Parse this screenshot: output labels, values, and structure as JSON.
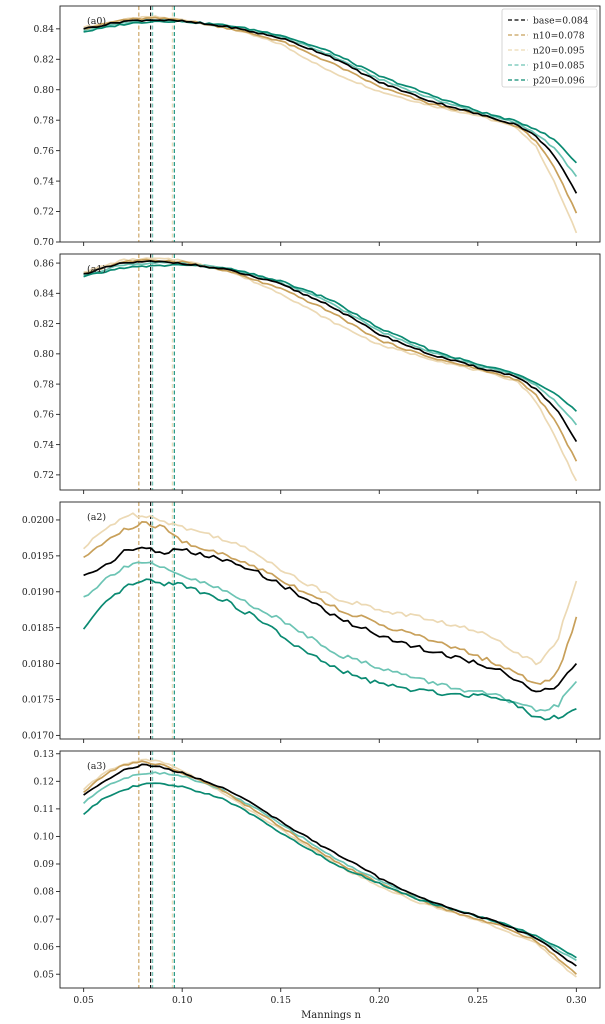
{
  "figure": {
    "xlabel": "Mannings n",
    "xticks": [
      0.05,
      0.1,
      0.15,
      0.2,
      0.25,
      0.3
    ]
  },
  "colors": {
    "base": "#000000",
    "n10": "#c8a05a",
    "n20": "#ecd9b4",
    "p10": "#6cc4b4",
    "p20": "#0a8a72"
  },
  "legend": {
    "position": "top-right",
    "entries": [
      {
        "key": "base",
        "label": "base=0.084",
        "x": 0.084
      },
      {
        "key": "n10",
        "label": "n10=0.078",
        "x": 0.078
      },
      {
        "key": "n20",
        "label": "n20=0.095",
        "x": 0.095
      },
      {
        "key": "p10",
        "label": "p10=0.085",
        "x": 0.085
      },
      {
        "key": "p20",
        "label": "p20=0.096",
        "x": 0.096
      }
    ]
  },
  "chart_data": [
    {
      "type": "line",
      "panel_label": "(a0)",
      "ylabel": "",
      "xlim": [
        0.038,
        0.312
      ],
      "ylim": [
        0.7,
        0.855
      ],
      "yticks": [
        0.7,
        0.72,
        0.74,
        0.76,
        0.78,
        0.8,
        0.82,
        0.84
      ],
      "x": [
        0.05,
        0.07,
        0.085,
        0.1,
        0.125,
        0.15,
        0.175,
        0.2,
        0.225,
        0.25,
        0.27,
        0.28,
        0.29,
        0.3
      ],
      "series": [
        {
          "key": "base",
          "values": [
            0.84,
            0.845,
            0.846,
            0.845,
            0.841,
            0.834,
            0.822,
            0.805,
            0.793,
            0.784,
            0.777,
            0.769,
            0.755,
            0.732
          ]
        },
        {
          "key": "n10",
          "values": [
            0.84,
            0.846,
            0.847,
            0.846,
            0.84,
            0.832,
            0.818,
            0.802,
            0.791,
            0.784,
            0.776,
            0.766,
            0.746,
            0.719
          ]
        },
        {
          "key": "n20",
          "values": [
            0.841,
            0.846,
            0.848,
            0.846,
            0.84,
            0.83,
            0.812,
            0.799,
            0.79,
            0.783,
            0.775,
            0.762,
            0.736,
            0.706
          ]
        },
        {
          "key": "p10",
          "values": [
            0.839,
            0.844,
            0.846,
            0.845,
            0.841,
            0.835,
            0.823,
            0.807,
            0.795,
            0.785,
            0.778,
            0.771,
            0.76,
            0.743
          ]
        },
        {
          "key": "p20",
          "values": [
            0.838,
            0.843,
            0.845,
            0.845,
            0.842,
            0.836,
            0.825,
            0.809,
            0.797,
            0.786,
            0.779,
            0.774,
            0.766,
            0.752
          ]
        }
      ]
    },
    {
      "type": "line",
      "panel_label": "(a1)",
      "ylabel": "",
      "xlim": [
        0.038,
        0.312
      ],
      "ylim": [
        0.71,
        0.866
      ],
      "yticks": [
        0.72,
        0.74,
        0.76,
        0.78,
        0.8,
        0.82,
        0.84,
        0.86
      ],
      "x": [
        0.05,
        0.07,
        0.085,
        0.1,
        0.125,
        0.15,
        0.175,
        0.2,
        0.225,
        0.25,
        0.27,
        0.28,
        0.29,
        0.3
      ],
      "series": [
        {
          "key": "base",
          "values": [
            0.853,
            0.86,
            0.861,
            0.86,
            0.855,
            0.846,
            0.832,
            0.813,
            0.8,
            0.791,
            0.785,
            0.776,
            0.763,
            0.742
          ]
        },
        {
          "key": "n10",
          "values": [
            0.853,
            0.861,
            0.862,
            0.861,
            0.854,
            0.843,
            0.828,
            0.809,
            0.798,
            0.79,
            0.783,
            0.772,
            0.754,
            0.729
          ]
        },
        {
          "key": "n20",
          "values": [
            0.854,
            0.862,
            0.863,
            0.862,
            0.854,
            0.84,
            0.822,
            0.806,
            0.797,
            0.789,
            0.782,
            0.768,
            0.743,
            0.716
          ]
        },
        {
          "key": "p10",
          "values": [
            0.852,
            0.859,
            0.86,
            0.86,
            0.856,
            0.847,
            0.834,
            0.815,
            0.802,
            0.792,
            0.786,
            0.779,
            0.768,
            0.753
          ]
        },
        {
          "key": "p20",
          "values": [
            0.851,
            0.857,
            0.858,
            0.859,
            0.856,
            0.848,
            0.836,
            0.817,
            0.803,
            0.793,
            0.787,
            0.781,
            0.773,
            0.762
          ]
        }
      ]
    },
    {
      "type": "line",
      "panel_label": "(a2)",
      "ylabel": "",
      "xlim": [
        0.038,
        0.312
      ],
      "ylim": [
        0.01695,
        0.02025
      ],
      "yticks": [
        0.017,
        0.0175,
        0.018,
        0.0185,
        0.019,
        0.0195,
        0.02
      ],
      "x": [
        0.05,
        0.06,
        0.07,
        0.08,
        0.09,
        0.1,
        0.12,
        0.14,
        0.16,
        0.18,
        0.2,
        0.22,
        0.24,
        0.26,
        0.27,
        0.28,
        0.29,
        0.3
      ],
      "series": [
        {
          "key": "base",
          "values": [
            0.01923,
            0.01935,
            0.01955,
            0.01962,
            0.01955,
            0.01958,
            0.01945,
            0.01925,
            0.01895,
            0.01862,
            0.0184,
            0.01822,
            0.01808,
            0.01792,
            0.01778,
            0.0176,
            0.01765,
            0.018
          ]
        },
        {
          "key": "n10",
          "values": [
            0.01948,
            0.01968,
            0.01985,
            0.01995,
            0.0199,
            0.0197,
            0.01952,
            0.01932,
            0.01903,
            0.01875,
            0.01855,
            0.01838,
            0.0182,
            0.018,
            0.01785,
            0.01772,
            0.01782,
            0.01865
          ]
        },
        {
          "key": "n20",
          "values": [
            0.0196,
            0.01985,
            0.02005,
            0.02008,
            0.02,
            0.0199,
            0.01975,
            0.0195,
            0.01915,
            0.0189,
            0.01875,
            0.01865,
            0.01852,
            0.01835,
            0.01815,
            0.018,
            0.0183,
            0.01915
          ]
        },
        {
          "key": "p10",
          "values": [
            0.01893,
            0.01915,
            0.01935,
            0.01942,
            0.01932,
            0.01922,
            0.01903,
            0.01875,
            0.01845,
            0.01812,
            0.01795,
            0.01778,
            0.01765,
            0.01755,
            0.01742,
            0.01735,
            0.0174,
            0.01775
          ]
        },
        {
          "key": "p20",
          "values": [
            0.01848,
            0.0188,
            0.01905,
            0.01915,
            0.01912,
            0.0191,
            0.0189,
            0.0186,
            0.0182,
            0.0179,
            0.01772,
            0.01762,
            0.01757,
            0.01755,
            0.01742,
            0.01725,
            0.01725,
            0.01737
          ]
        }
      ]
    },
    {
      "type": "line",
      "panel_label": "(a3)",
      "ylabel": "",
      "xlim": [
        0.038,
        0.312
      ],
      "ylim": [
        0.045,
        0.131
      ],
      "yticks": [
        0.05,
        0.06,
        0.07,
        0.08,
        0.09,
        0.1,
        0.11,
        0.12,
        0.13
      ],
      "x": [
        0.05,
        0.06,
        0.07,
        0.08,
        0.09,
        0.1,
        0.12,
        0.14,
        0.16,
        0.18,
        0.2,
        0.22,
        0.24,
        0.26,
        0.28,
        0.29,
        0.3
      ],
      "series": [
        {
          "key": "base",
          "values": [
            0.115,
            0.12,
            0.124,
            0.126,
            0.125,
            0.123,
            0.118,
            0.11,
            0.101,
            0.093,
            0.085,
            0.078,
            0.073,
            0.069,
            0.063,
            0.058,
            0.053
          ]
        },
        {
          "key": "n10",
          "values": [
            0.116,
            0.122,
            0.126,
            0.127,
            0.126,
            0.123,
            0.117,
            0.108,
            0.099,
            0.09,
            0.083,
            0.077,
            0.072,
            0.068,
            0.062,
            0.056,
            0.05
          ]
        },
        {
          "key": "n20",
          "values": [
            0.117,
            0.123,
            0.126,
            0.128,
            0.127,
            0.124,
            0.116,
            0.107,
            0.098,
            0.089,
            0.082,
            0.076,
            0.072,
            0.067,
            0.061,
            0.055,
            0.049
          ]
        },
        {
          "key": "p10",
          "values": [
            0.112,
            0.118,
            0.121,
            0.123,
            0.123,
            0.122,
            0.117,
            0.109,
            0.1,
            0.091,
            0.084,
            0.078,
            0.073,
            0.069,
            0.063,
            0.059,
            0.055
          ]
        },
        {
          "key": "p20",
          "values": [
            0.108,
            0.114,
            0.117,
            0.119,
            0.119,
            0.118,
            0.114,
            0.106,
            0.097,
            0.089,
            0.083,
            0.077,
            0.073,
            0.069,
            0.064,
            0.06,
            0.056
          ]
        }
      ]
    }
  ]
}
